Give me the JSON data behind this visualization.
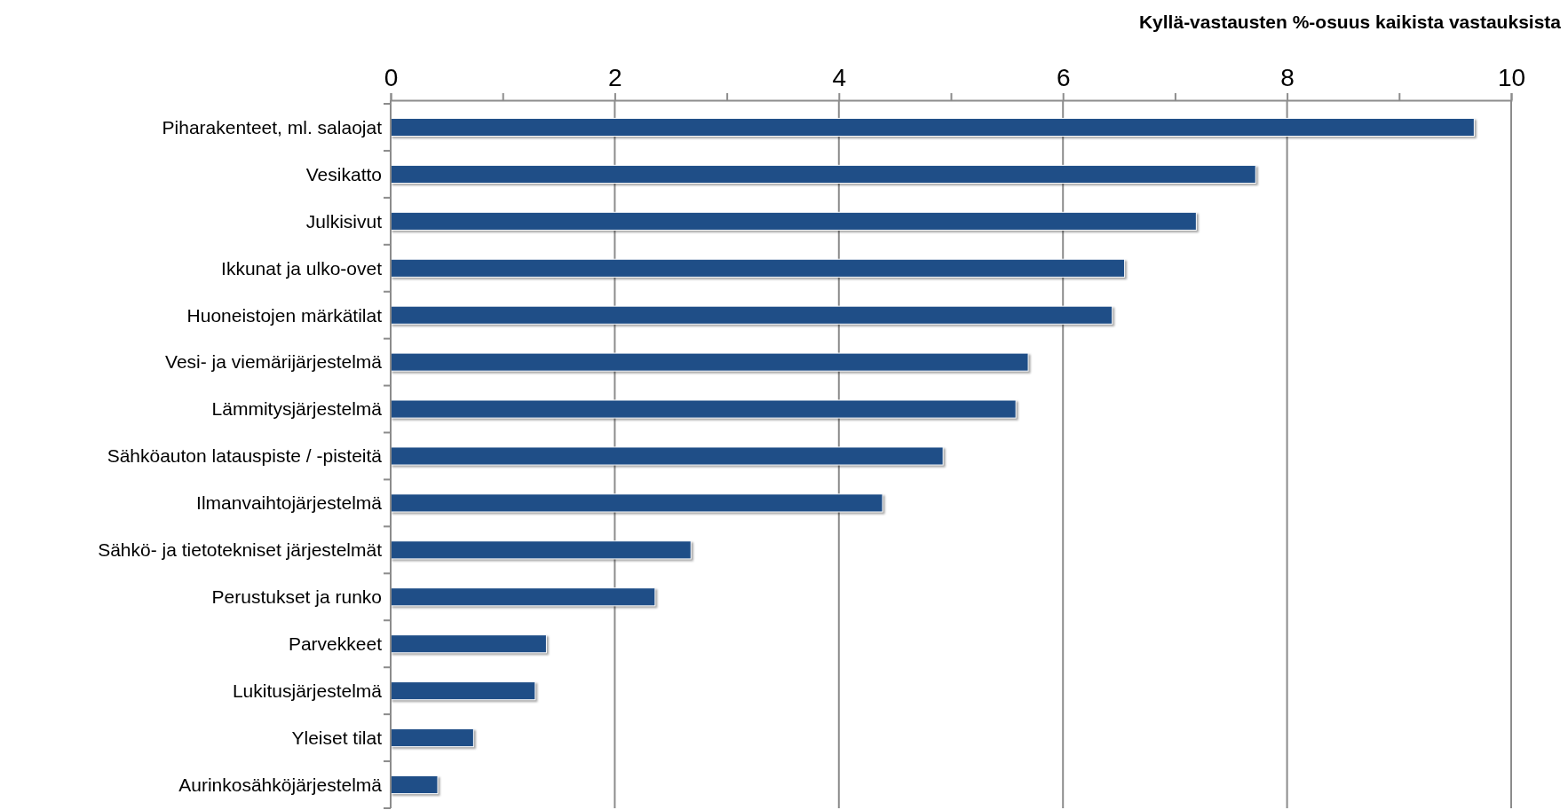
{
  "chart_data": {
    "type": "bar",
    "orientation": "horizontal",
    "xlabel": "Kyllä-vastausten %-osuus kaikista vastauksista",
    "categories": [
      "Piharakenteet, ml. salaojat",
      "Vesikatto",
      "Julkisivut",
      "Ikkunat ja ulko-ovet",
      "Huoneistojen märkätilat",
      "Vesi- ja viemärijärjestelmä",
      "Lämmitysjärjestelmä",
      "Sähköauton latauspiste / -pisteitä",
      "Ilmanvaihtojärjestelmä",
      "Sähkö- ja tietotekniset järjestelmät",
      "Perustukset ja runko",
      "Parvekkeet",
      "Lukitusjärjestelmä",
      "Yleiset tilat",
      "Aurinkosähköjärjestelmä"
    ],
    "values": [
      9.67,
      7.72,
      7.19,
      6.55,
      6.44,
      5.69,
      5.58,
      4.93,
      4.39,
      2.68,
      2.36,
      1.39,
      1.29,
      0.74,
      0.42
    ],
    "color": "#1f4e87",
    "xlim": [
      0,
      10
    ],
    "xticks": [
      0,
      {
        "value": 1,
        "label": null
      },
      2,
      {
        "value": 3,
        "label": null
      },
      4,
      {
        "value": 5,
        "label": null
      },
      6,
      {
        "value": 7,
        "label": null
      },
      8,
      {
        "value": 9,
        "label": null
      },
      10
    ],
    "grid": "x"
  }
}
